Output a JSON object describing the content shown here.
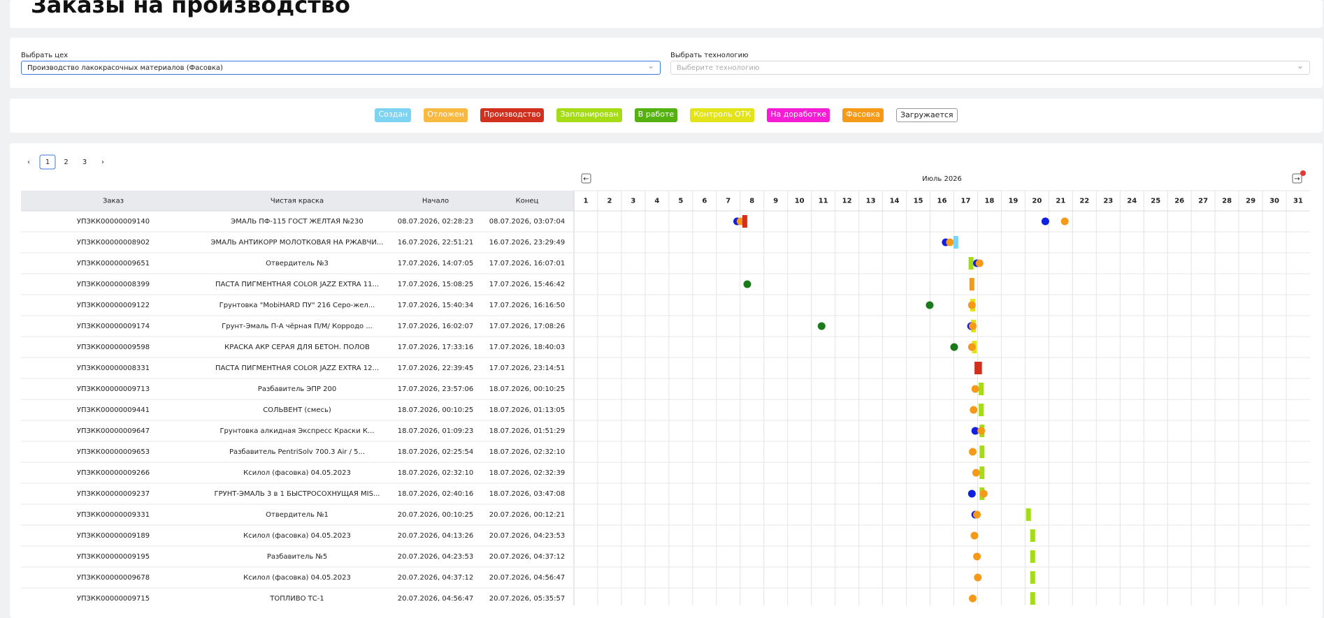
{
  "header": {
    "title": "Заказы на производство"
  },
  "filters": {
    "workshop_label": "Выбрать цех",
    "workshop_value": "Производство лакокрасочных материалов (Фасовка)",
    "technology_label": "Выбрать технологию",
    "technology_placeholder": "Выберите технологию"
  },
  "legend": [
    {
      "label": "Создан",
      "color": "#7dd3f2"
    },
    {
      "label": "Отложен",
      "color": "#f7b940"
    },
    {
      "label": "Производство",
      "color": "#d1301e"
    },
    {
      "label": "Запланирован",
      "color": "#a6dc16"
    },
    {
      "label": "В работе",
      "color": "#55b10f"
    },
    {
      "label": "Контроль ОТК",
      "color": "#e3e319"
    },
    {
      "label": "На доработке",
      "color": "#f41cd4"
    },
    {
      "label": "Фасовка",
      "color": "#f59a18"
    },
    {
      "label": "Загружается",
      "color": "#ffffff"
    }
  ],
  "pagination": {
    "pages": [
      "1",
      "2",
      "3"
    ]
  },
  "gantt": {
    "month": "Июль 2026",
    "days": [
      "1",
      "2",
      "3",
      "4",
      "5",
      "6",
      "7",
      "8",
      "9",
      "10",
      "11",
      "12",
      "13",
      "14",
      "15",
      "16",
      "17",
      "18",
      "19",
      "20",
      "21",
      "22",
      "23",
      "24",
      "25",
      "26",
      "27",
      "28",
      "29",
      "30",
      "31"
    ]
  },
  "table": {
    "columns": [
      "Заказ",
      "Чистая краска",
      "Начало",
      "Конец"
    ],
    "rows": [
      [
        "УПЗКК00000009140",
        "ЭМАЛЬ ПФ-115 ГОСТ ЖЕЛТАЯ №230",
        "08.07.2026, 02:28:23",
        "08.07.2026, 03:07:04"
      ],
      [
        "УПЗКК00000008902",
        "ЭМАЛЬ АНТИКОРР МОЛОТКОВАЯ НА РЖАВЧИ...",
        "16.07.2026, 22:51:21",
        "16.07.2026, 23:29:49"
      ],
      [
        "УПЗКК00000009651",
        "Отвердитель №3",
        "17.07.2026, 14:07:05",
        "17.07.2026, 16:07:01"
      ],
      [
        "УПЗКК00000008399",
        "ПАСТА ПИГМЕНТНАЯ COLOR JAZZ EXTRA 11...",
        "17.07.2026, 15:08:25",
        "17.07.2026, 15:46:42"
      ],
      [
        "УПЗКК00000009122",
        "Грунтовка \"MobiHARD ПУ\" 216 Серо-жел...",
        "17.07.2026, 15:40:34",
        "17.07.2026, 16:16:50"
      ],
      [
        "УПЗКК00000009174",
        "Грунт-Эмаль П-А чёрная П/М/ Корродо ...",
        "17.07.2026, 16:02:07",
        "17.07.2026, 17:08:26"
      ],
      [
        "УПЗКК00000009598",
        "КРАСКА АКР СЕРАЯ ДЛЯ БЕТОН. ПОЛОВ",
        "17.07.2026, 17:33:16",
        "17.07.2026, 18:40:03"
      ],
      [
        "УПЗКК00000008331",
        "ПАСТА ПИГМЕНТНАЯ COLOR JAZZ EXTRA 12...",
        "17.07.2026, 22:39:45",
        "17.07.2026, 23:14:51"
      ],
      [
        "УПЗКК00000009713",
        "Разбавитель ЭПР 200",
        "17.07.2026, 23:57:06",
        "18.07.2026, 00:10:25"
      ],
      [
        "УПЗКК00000009441",
        "СОЛЬВЕНТ (смесь)",
        "18.07.2026, 00:10:25",
        "18.07.2026, 01:13:05"
      ],
      [
        "УПЗКК00000009647",
        "Грунтовка алкидная Экспресс Краски К...",
        "18.07.2026, 01:09:23",
        "18.07.2026, 01:51:29"
      ],
      [
        "УПЗКК00000009653",
        "Разбавитель PentriSolv 700.3 Air / 5...",
        "18.07.2026, 02:25:54",
        "18.07.2026, 02:32:10"
      ],
      [
        "УПЗКК00000009266",
        "Ксилол (фасовка) 04.05.2023",
        "18.07.2026, 02:32:10",
        "18.07.2026, 02:32:39"
      ],
      [
        "УПЗКК00000009237",
        "ГРУНТ-ЭМАЛЬ 3 в 1 БЫСТРОСОХНУЩАЯ MIS...",
        "18.07.2026, 02:40:16",
        "18.07.2026, 03:47:08"
      ],
      [
        "УПЗКК00000009331",
        "Отвердитель №1",
        "20.07.2026, 00:10:25",
        "20.07.2026, 00:12:21"
      ],
      [
        "УПЗКК00000009189",
        "Ксилол (фасовка) 04.05.2023",
        "20.07.2026, 04:13:26",
        "20.07.2026, 04:23:53"
      ],
      [
        "УПЗКК00000009195",
        "Разбавитель №5",
        "20.07.2026, 04:23:53",
        "20.07.2026, 04:37:12"
      ],
      [
        "УПЗКК00000009678",
        "Ксилол (фасовка) 04.05.2023",
        "20.07.2026, 04:37:12",
        "20.07.2026, 04:56:47"
      ],
      [
        "УПЗКК00000009715",
        "ТОПЛИВО ТС-1",
        "20.07.2026, 04:56:47",
        "20.07.2026, 05:35:57"
      ]
    ]
  }
}
